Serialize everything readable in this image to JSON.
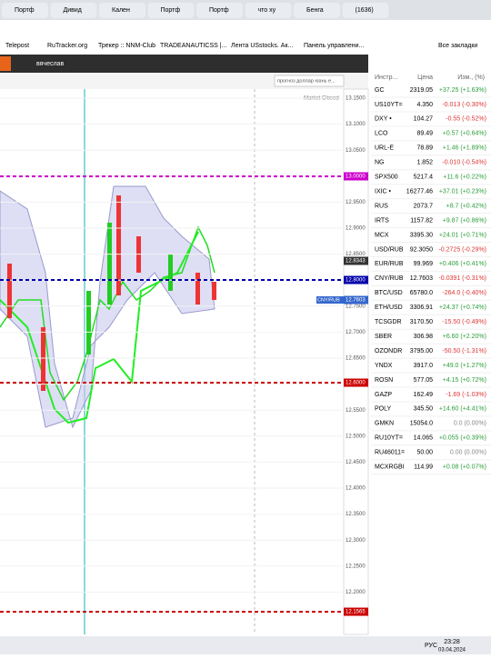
{
  "browser": {
    "tabs": [
      "Портф",
      "Дивид",
      "Кален",
      "Портф",
      "Портф",
      "что ху",
      "Бенга",
      "(1636)"
    ],
    "bookmarks": [
      "Telepost",
      "RuTracker.org",
      "Трекер :: NNM-Club",
      "TRADEANAUTICSS |...",
      "Лента USstocks. Ак...",
      "Панель управлени..."
    ],
    "all_bookmarks": "Все закладки"
  },
  "app": {
    "user": "вячеслав",
    "search": "прогноз доллар юань е..."
  },
  "chart": {
    "status": "Market Closed",
    "price_axis": [
      "13.1500",
      "13.1000",
      "13.0500",
      "13.0000",
      "12.9500",
      "12.9000",
      "12.8500",
      "12.8000",
      "12.7500",
      "12.7000",
      "12.6500",
      "12.6000",
      "12.5500",
      "12.5000",
      "12.4500",
      "12.4000",
      "12.3500",
      "12.3000",
      "12.2500",
      "12.2000"
    ],
    "levels": [
      "13.0000",
      "12.8343",
      "12.8000",
      "CNY/RUB",
      "12.7603",
      "12.6000",
      "12.1565"
    ]
  },
  "watchlist": {
    "headers": [
      "Инстр...",
      "Цена",
      "Изм., (%)"
    ],
    "rows": [
      [
        "GC",
        "2319.05",
        "+37.25 (+1.63%)"
      ],
      [
        "US10YT=",
        "4.350",
        "-0.013 (-0.30%)"
      ],
      [
        "DXY •",
        "104.27",
        "-0.55 (-0.52%)"
      ],
      [
        "LCO",
        "89.49",
        "+0.57 (+0.64%)"
      ],
      [
        "URL-E",
        "78.89",
        "+1.46 (+1.89%)"
      ],
      [
        "NG",
        "1.852",
        "-0.010 (-0.54%)"
      ],
      [
        "SPX500",
        "5217.4",
        "+11.6 (+0.22%)"
      ],
      [
        "IXIC •",
        "16277.46",
        "+37.01 (+0.23%)"
      ],
      [
        "RUS",
        "2073.7",
        "+8.7 (+0.42%)"
      ],
      [
        "IRTS",
        "1157.82",
        "+9.87 (+0.86%)"
      ],
      [
        "MCX",
        "3395.30",
        "+24.01 (+0.71%)"
      ],
      [
        "USD/RUB",
        "92.3050",
        "-0.2725 (-0.29%)"
      ],
      [
        "EUR/RUB",
        "99.969",
        "+0.406 (+0.41%)"
      ],
      [
        "CNY/RUB",
        "12.7603",
        "-0.0391 (-0.31%)"
      ],
      [
        "BTC/USD",
        "65780.0",
        "-264.0 (-0.40%)"
      ],
      [
        "ETH/USD",
        "3306.91",
        "+24.37 (+0.74%)"
      ],
      [
        "TCSGDR",
        "3170.50",
        "-15.50 (-0.49%)"
      ],
      [
        "SBER",
        "306.98",
        "+6.60 (+2.20%)"
      ],
      [
        "OZONDR",
        "3795.00",
        "-50.50 (-1.31%)"
      ],
      [
        "YNDX",
        "3917.0",
        "+49.0 (+1.27%)"
      ],
      [
        "ROSN",
        "577.05",
        "+4.15 (+0.72%)"
      ],
      [
        "GAZP",
        "162.49",
        "-1.69 (-1.03%)"
      ],
      [
        "POLY",
        "345.50",
        "+14.60 (+4.41%)"
      ],
      [
        "GMKN",
        "15054.0",
        "0.0 (0.00%)"
      ],
      [
        "RU10YT=",
        "14.065",
        "+0.055 (+0.39%)"
      ],
      [
        "RU46011=",
        "50.00",
        "0.00 (0.00%)"
      ],
      [
        "MCXRGBI",
        "114.99",
        "+0.08 (+0.07%)"
      ]
    ]
  },
  "taskbar": {
    "lang": "РУС",
    "time": "23:28",
    "date": "03.04.2024"
  }
}
